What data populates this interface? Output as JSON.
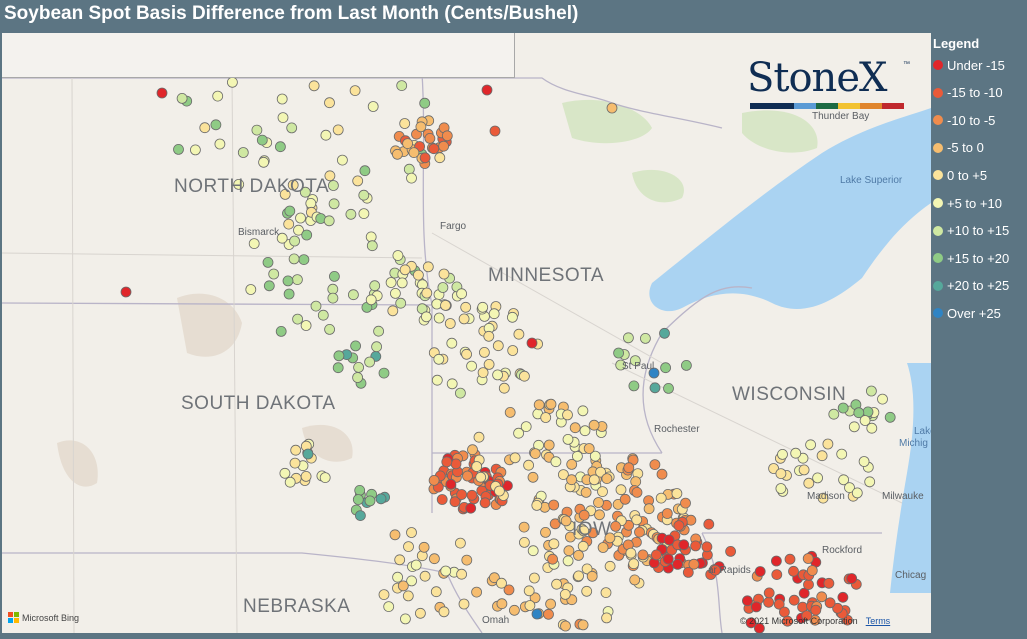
{
  "title": "Soybean Spot Basis Difference from Last Month (Cents/Bushel)",
  "legend": {
    "title": "Legend",
    "items": [
      {
        "label": "Under -15",
        "color": "#e0262a"
      },
      {
        "label": "-15 to -10",
        "color": "#ea5a39"
      },
      {
        "label": "-10 to -5",
        "color": "#f08c4d"
      },
      {
        "label": "-5 to 0",
        "color": "#f6bd6f"
      },
      {
        "label": "0 to +5",
        "color": "#fbe39b"
      },
      {
        "label": "+5 to +10",
        "color": "#f3f6b4"
      },
      {
        "label": "+10 to +15",
        "color": "#cfe8a2"
      },
      {
        "label": "+15 to +20",
        "color": "#8fcb85"
      },
      {
        "label": "+20 to +25",
        "color": "#56a89b"
      },
      {
        "label": "Over +25",
        "color": "#2f84c4"
      }
    ]
  },
  "map": {
    "states": {
      "north_dakota": "NORTH DAKOTA",
      "south_dakota": "SOUTH DAKOTA",
      "minnesota": "MINNESOTA",
      "wisconsin": "WISCONSIN",
      "nebraska": "NEBRASKA",
      "iowa": "IOW"
    },
    "cities": {
      "bismarck": "Bismarck",
      "fargo": "Fargo",
      "st_paul": "St Paul",
      "rochester": "Rochester",
      "madison": "Madison",
      "milwaukee": "Milwauke",
      "rockford": "Rockford",
      "cedar_rapids": "ar Rapids",
      "chicago": "Chicag",
      "omaha": "Omah",
      "thunder_bay": "Thunder Bay"
    },
    "water": {
      "lake_superior": "Lake Superior",
      "lake_michigan_1": "Lake",
      "lake_michigan_2": "Michig"
    },
    "brand_logo": {
      "name": "StoneX",
      "tm": "™",
      "bar_colors": [
        "#0f2d53",
        "#0f2d53",
        "#5b9bd5",
        "#1d6b43",
        "#f2c230",
        "#e0852c",
        "#c0282d"
      ]
    },
    "attribution": {
      "bing": "Microsoft Bing",
      "copyright": "© 2021 Microsoft Corporation",
      "terms": "Terms"
    }
  }
}
